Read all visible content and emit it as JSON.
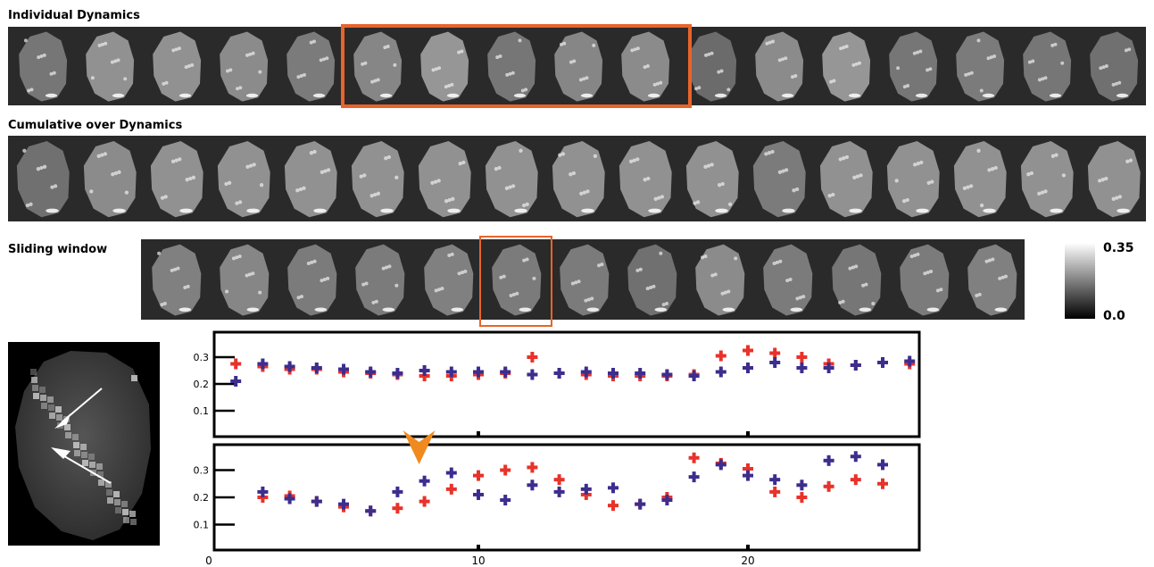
{
  "rows": {
    "individual": {
      "label": "Individual Dynamics",
      "count": 17,
      "highlight_start": 5,
      "highlight_count": 5,
      "brightness": [
        0.55,
        0.8,
        0.8,
        0.75,
        0.6,
        0.7,
        0.85,
        0.55,
        0.7,
        0.75,
        0.45,
        0.75,
        0.85,
        0.55,
        0.6,
        0.55,
        0.5
      ]
    },
    "cumulative": {
      "label": "Cumulative over Dynamics",
      "count": 17,
      "brightness": [
        0.5,
        0.75,
        0.8,
        0.8,
        0.8,
        0.8,
        0.8,
        0.8,
        0.8,
        0.8,
        0.8,
        0.6,
        0.8,
        0.8,
        0.8,
        0.8,
        0.8
      ]
    },
    "sliding": {
      "label": "Sliding window",
      "count": 13,
      "highlight_index": 5,
      "brightness": [
        0.65,
        0.7,
        0.6,
        0.6,
        0.65,
        0.6,
        0.6,
        0.5,
        0.75,
        0.6,
        0.55,
        0.6,
        0.65
      ]
    }
  },
  "colorbar": {
    "max_label": "0.35",
    "min_label": "0.0"
  },
  "chart_data": [
    {
      "type": "scatter",
      "ylim": [
        0.0,
        0.4
      ],
      "yticks": [
        "0.3",
        "0.2",
        "0.1"
      ],
      "xlim": [
        0,
        27
      ],
      "series": [
        {
          "color": "#e8322a",
          "x": [
            1,
            2,
            3,
            4,
            5,
            6,
            7,
            8,
            9,
            10,
            11,
            12,
            13,
            14,
            15,
            16,
            17,
            18,
            19,
            20,
            21,
            22,
            23,
            24,
            25,
            26
          ],
          "values": [
            0.275,
            0.265,
            0.255,
            0.255,
            0.245,
            0.24,
            0.235,
            0.23,
            0.23,
            0.235,
            0.24,
            0.3,
            0.24,
            0.235,
            0.23,
            0.23,
            0.23,
            0.235,
            0.305,
            0.325,
            0.315,
            0.3,
            0.275,
            0.27,
            0.28,
            0.275
          ]
        },
        {
          "color": "#3c2d8e",
          "x": [
            1,
            2,
            3,
            4,
            5,
            6,
            7,
            8,
            9,
            10,
            11,
            12,
            13,
            14,
            15,
            16,
            17,
            18,
            19,
            20,
            21,
            22,
            23,
            24,
            25,
            26
          ],
          "values": [
            0.21,
            0.275,
            0.265,
            0.26,
            0.255,
            0.245,
            0.24,
            0.25,
            0.245,
            0.245,
            0.245,
            0.235,
            0.24,
            0.245,
            0.24,
            0.24,
            0.235,
            0.23,
            0.245,
            0.26,
            0.28,
            0.26,
            0.26,
            0.27,
            0.28,
            0.285
          ]
        }
      ]
    },
    {
      "type": "scatter",
      "ylim": [
        0.0,
        0.4
      ],
      "yticks": [
        "0.3",
        "0.2",
        "0.1"
      ],
      "xlim": [
        0,
        27
      ],
      "xticks": [
        "0",
        "10",
        "20"
      ],
      "series": [
        {
          "color": "#e8322a",
          "x": [
            2,
            3,
            4,
            5,
            6,
            7,
            8,
            9,
            10,
            11,
            12,
            13,
            14,
            15,
            16,
            17,
            18,
            19,
            20,
            21,
            22,
            23,
            24,
            25
          ],
          "values": [
            0.2,
            0.205,
            0.185,
            0.165,
            0.15,
            0.16,
            0.185,
            0.23,
            0.28,
            0.3,
            0.31,
            0.265,
            0.21,
            0.17,
            0.175,
            0.2,
            0.345,
            0.325,
            0.305,
            0.22,
            0.2,
            0.24,
            0.265,
            0.25
          ]
        },
        {
          "color": "#3c2d8e",
          "x": [
            2,
            3,
            4,
            5,
            6,
            7,
            8,
            9,
            10,
            11,
            12,
            13,
            14,
            15,
            16,
            17,
            18,
            19,
            20,
            21,
            22,
            23,
            24,
            25
          ],
          "values": [
            0.22,
            0.195,
            0.185,
            0.175,
            0.15,
            0.22,
            0.26,
            0.29,
            0.21,
            0.19,
            0.245,
            0.22,
            0.23,
            0.235,
            0.175,
            0.19,
            0.275,
            0.32,
            0.28,
            0.265,
            0.245,
            0.335,
            0.35,
            0.32
          ]
        }
      ],
      "marker_x": 8
    }
  ]
}
